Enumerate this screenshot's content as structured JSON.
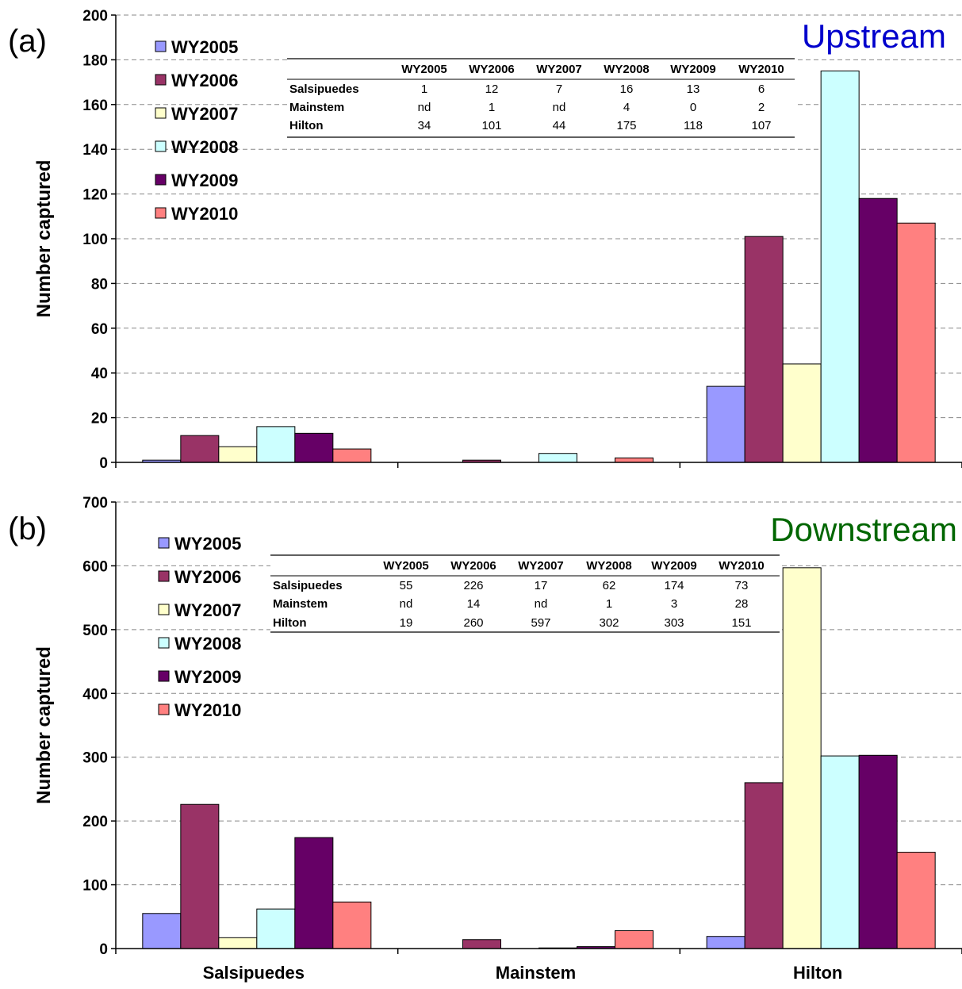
{
  "colors": {
    "WY2005": "#9999FF",
    "WY2006": "#993366",
    "WY2007": "#FFFFCC",
    "WY2008": "#CCFFFF",
    "WY2009": "#660066",
    "WY2010": "#FF8080"
  },
  "chart_data": [
    {
      "type": "bar",
      "panel_label": "(a)",
      "corner_label": "Upstream",
      "corner_color": "#0000CC",
      "ylabel": "Number captured",
      "xlabel": "",
      "ylim": [
        0,
        200
      ],
      "yticks": [
        0,
        20,
        40,
        60,
        80,
        100,
        120,
        140,
        160,
        180,
        200
      ],
      "grid": true,
      "legend_position": "top-left",
      "categories": [
        "Salsipuedes",
        "Mainstem",
        "Hilton"
      ],
      "series": [
        {
          "name": "WY2005",
          "values": [
            1,
            0,
            34
          ]
        },
        {
          "name": "WY2006",
          "values": [
            12,
            1,
            101
          ]
        },
        {
          "name": "WY2007",
          "values": [
            7,
            0,
            44
          ]
        },
        {
          "name": "WY2008",
          "values": [
            16,
            4,
            175
          ]
        },
        {
          "name": "WY2009",
          "values": [
            13,
            0,
            118
          ]
        },
        {
          "name": "WY2010",
          "values": [
            6,
            2,
            107
          ]
        }
      ],
      "table": {
        "columns": [
          "WY2005",
          "WY2006",
          "WY2007",
          "WY2008",
          "WY2009",
          "WY2010"
        ],
        "rows": [
          {
            "label": "Salsipuedes",
            "cells": [
              "1",
              "12",
              "7",
              "16",
              "13",
              "6"
            ]
          },
          {
            "label": "Mainstem",
            "cells": [
              "nd",
              "1",
              "nd",
              "4",
              "0",
              "2"
            ]
          },
          {
            "label": "Hilton",
            "cells": [
              "34",
              "101",
              "44",
              "175",
              "118",
              "107"
            ]
          }
        ]
      }
    },
    {
      "type": "bar",
      "panel_label": "(b)",
      "corner_label": "Downstream",
      "corner_color": "#006600",
      "ylabel": "Number captured",
      "xlabel": "",
      "ylim": [
        0,
        700
      ],
      "yticks": [
        0,
        100,
        200,
        300,
        400,
        500,
        600,
        700
      ],
      "grid": true,
      "legend_position": "top-left",
      "categories": [
        "Salsipuedes",
        "Mainstem",
        "Hilton"
      ],
      "series": [
        {
          "name": "WY2005",
          "values": [
            55,
            0,
            19
          ]
        },
        {
          "name": "WY2006",
          "values": [
            226,
            14,
            260
          ]
        },
        {
          "name": "WY2007",
          "values": [
            17,
            0,
            597
          ]
        },
        {
          "name": "WY2008",
          "values": [
            62,
            1,
            302
          ]
        },
        {
          "name": "WY2009",
          "values": [
            174,
            3,
            303
          ]
        },
        {
          "name": "WY2010",
          "values": [
            73,
            28,
            151
          ]
        }
      ],
      "table": {
        "columns": [
          "WY2005",
          "WY2006",
          "WY2007",
          "WY2008",
          "WY2009",
          "WY2010"
        ],
        "rows": [
          {
            "label": "Salsipuedes",
            "cells": [
              "55",
              "226",
              "17",
              "62",
              "174",
              "73"
            ]
          },
          {
            "label": "Mainstem",
            "cells": [
              "nd",
              "14",
              "nd",
              "1",
              "3",
              "28"
            ]
          },
          {
            "label": "Hilton",
            "cells": [
              "19",
              "260",
              "597",
              "302",
              "303",
              "151"
            ]
          }
        ]
      }
    }
  ]
}
